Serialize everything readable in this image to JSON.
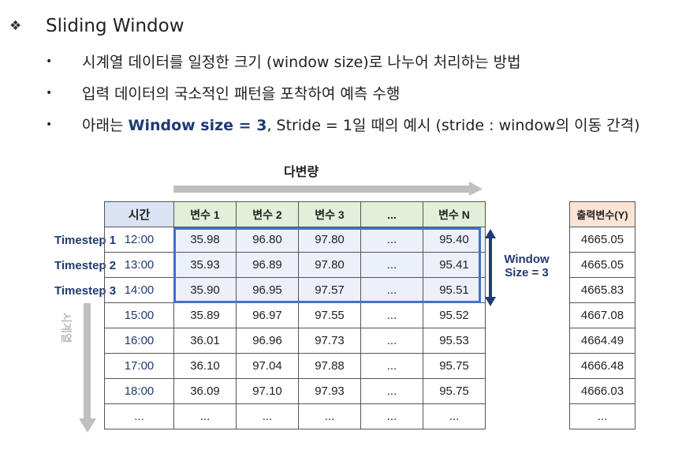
{
  "heading": {
    "bullet_icon": "❖",
    "title": "Sliding Window"
  },
  "bullets": [
    {
      "dot": "•",
      "text": "시계열 데이터를 일정한 크기 (window size)로 나누어 처리하는 방법"
    },
    {
      "dot": "•",
      "text": "입력 데이터의 국소적인 패턴을 포착하여 예측 수행"
    },
    {
      "dot": "•",
      "prefix": "아래는 ",
      "bold": "Window size = 3",
      "suffix": ", Stride = 1일 때의 예시 (stride : window의 이동 간격)"
    }
  ],
  "diagram": {
    "multivariate_label": "다변량",
    "time_series_label": "시계열",
    "window_label_line1": "Window",
    "window_label_line2": "Size = 3",
    "timesteps": [
      {
        "word": "Timestep",
        "num": "1"
      },
      {
        "word": "Timestep",
        "num": "2"
      },
      {
        "word": "Timestep",
        "num": "3"
      }
    ],
    "colors": {
      "window_border": "#4472c4",
      "header_time_bg": "#dae3f3",
      "header_var_bg": "#e2efd9",
      "header_out_bg": "#fbe4d5",
      "arrow_gray": "#bfbfbf",
      "arrow_navy": "#1f3b73"
    }
  },
  "table": {
    "headers": [
      "시간",
      "변수 1",
      "변수 2",
      "변수 3",
      "...",
      "변수 N"
    ],
    "rows": [
      [
        "12:00",
        "35.98",
        "96.80",
        "97.80",
        "...",
        "95.40"
      ],
      [
        "13:00",
        "35.93",
        "96.89",
        "97.80",
        "...",
        "95.41"
      ],
      [
        "14:00",
        "35.90",
        "96.95",
        "97.57",
        "...",
        "95.51"
      ],
      [
        "15:00",
        "35.89",
        "96.97",
        "97.55",
        "...",
        "95.52"
      ],
      [
        "16:00",
        "36.01",
        "96.96",
        "97.73",
        "...",
        "95.53"
      ],
      [
        "17:00",
        "36.10",
        "97.04",
        "97.88",
        "...",
        "95.75"
      ],
      [
        "18:00",
        "36.09",
        "97.10",
        "97.93",
        "...",
        "95.75"
      ],
      [
        "...",
        "...",
        "...",
        "...",
        "...",
        "..."
      ]
    ]
  },
  "output": {
    "header": "출력변수(Y)",
    "values": [
      "4665.05",
      "4665.05",
      "4665.83",
      "4667.08",
      "4664.49",
      "4666.48",
      "4666.03",
      "..."
    ]
  }
}
